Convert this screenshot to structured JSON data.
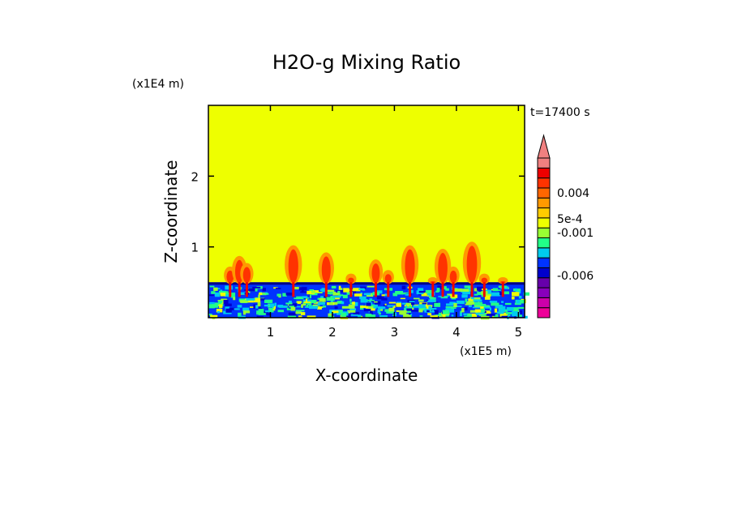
{
  "chart_data": {
    "type": "heatmap",
    "title": "H2O-g Mixing Ratio",
    "xlabel": "X-coordinate",
    "ylabel": "Z-coordinate",
    "x_unit": "(x1E5 m)",
    "y_unit": "(x1E4 m)",
    "time_label": "t=17400 s",
    "xlim": [
      0,
      5.1
    ],
    "ylim": [
      0,
      3.0
    ],
    "x_ticks": [
      1,
      2,
      3,
      4,
      5
    ],
    "y_ticks": [
      1,
      2
    ],
    "background_value_color": "#eeff00",
    "colorbar": {
      "extend_max": true,
      "levels": [
        {
          "color": "#ee0099"
        },
        {
          "color": "#cc00aa"
        },
        {
          "color": "#8800bb"
        },
        {
          "color": "#6600aa"
        },
        {
          "color": "#0000cc"
        },
        {
          "color": "#0033ff"
        },
        {
          "color": "#00ccee"
        },
        {
          "color": "#22ff88"
        },
        {
          "color": "#99ff33"
        },
        {
          "color": "#eeff00"
        },
        {
          "color": "#ffcc00"
        },
        {
          "color": "#ff9900"
        },
        {
          "color": "#ff6600"
        },
        {
          "color": "#ff3300"
        },
        {
          "color": "#ee0000"
        },
        {
          "color": "#f08080"
        }
      ],
      "labels": [
        "0.004",
        "5e-4",
        "-0.001",
        "-0.006"
      ]
    },
    "boundary_layer": {
      "z_top": 0.5
    },
    "plumes": [
      {
        "x": 0.35,
        "z_top": 0.7
      },
      {
        "x": 0.5,
        "z_top": 0.85
      },
      {
        "x": 0.62,
        "z_top": 0.75
      },
      {
        "x": 1.37,
        "z_top": 1.0
      },
      {
        "x": 1.9,
        "z_top": 0.9
      },
      {
        "x": 2.3,
        "z_top": 0.6
      },
      {
        "x": 2.7,
        "z_top": 0.8
      },
      {
        "x": 2.9,
        "z_top": 0.65
      },
      {
        "x": 3.25,
        "z_top": 1.0
      },
      {
        "x": 3.62,
        "z_top": 0.55
      },
      {
        "x": 3.78,
        "z_top": 0.95
      },
      {
        "x": 3.95,
        "z_top": 0.7
      },
      {
        "x": 4.25,
        "z_top": 1.05
      },
      {
        "x": 4.45,
        "z_top": 0.6
      },
      {
        "x": 4.75,
        "z_top": 0.55
      }
    ]
  }
}
